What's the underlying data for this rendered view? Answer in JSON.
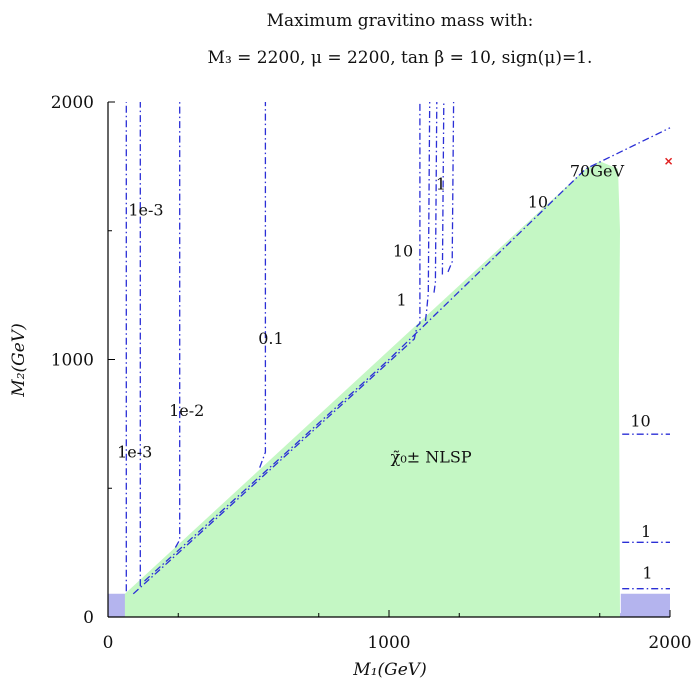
{
  "chart_data": {
    "type": "area",
    "title": "Maximum gravitino mass with:",
    "subtitle": "M₃ = 2200, μ = 2200, tan β = 10, sign(μ)=1.",
    "xlabel": "M₁(GeV)",
    "ylabel": "M₂(GeV)",
    "xlim": [
      0,
      2000
    ],
    "ylim": [
      0,
      2000
    ],
    "x_ticks": [
      0,
      1000,
      2000
    ],
    "y_ticks": [
      0,
      1000,
      2000
    ],
    "grid": false,
    "colors": {
      "nlsp_region": "#c4f7c4",
      "excluded_region": "#b4b4ee",
      "contour": "#2b2fd6",
      "marker": "#e02020"
    },
    "regions": [
      {
        "label": "χ̃₀± NLSP",
        "label_pos": [
          1150,
          600
        ],
        "boundary": [
          [
            60,
            90
          ],
          [
            1700,
            1740
          ],
          [
            1750,
            1770
          ],
          [
            1815,
            1740
          ],
          [
            1822,
            1500
          ],
          [
            1818,
            1000
          ],
          [
            1822,
            0
          ],
          [
            60,
            0
          ]
        ]
      }
    ],
    "excluded_regions": [
      {
        "boundary": [
          [
            0,
            0
          ],
          [
            2000,
            0
          ],
          [
            2000,
            90
          ],
          [
            1825,
            90
          ],
          [
            1825,
            15
          ],
          [
            150,
            15
          ],
          [
            60,
            90
          ],
          [
            0,
            90
          ]
        ]
      }
    ],
    "contours": [
      {
        "label": "1e-3",
        "label_pos": [
          95,
          620
        ],
        "points": [
          [
            65,
            100
          ],
          [
            65,
            2000
          ]
        ]
      },
      {
        "label": "1e-3",
        "label_pos": [
          135,
          1560
        ],
        "points": [
          [
            115,
            120
          ],
          [
            115,
            2000
          ]
        ]
      },
      {
        "label": "1e-2",
        "label_pos": [
          280,
          780
        ],
        "points": [
          [
            240,
            270
          ],
          [
            255,
            300
          ],
          [
            255,
            2000
          ]
        ]
      },
      {
        "label": "0.1",
        "label_pos": [
          580,
          1060
        ],
        "points": [
          [
            540,
            580
          ],
          [
            560,
            640
          ],
          [
            560,
            2000
          ]
        ]
      },
      {
        "label": "10",
        "label_pos": [
          1050,
          1400
        ],
        "points": [
          [
            90,
            90
          ],
          [
            1090,
            1080
          ],
          [
            1100,
            1130
          ],
          [
            1110,
            1140
          ],
          [
            1110,
            2000
          ]
        ]
      },
      {
        "label": "1",
        "label_pos": [
          1045,
          1210
        ],
        "points": [
          [
            1130,
            1150
          ],
          [
            1135,
            1200
          ],
          [
            1140,
            1260
          ],
          [
            1145,
            2000
          ]
        ]
      },
      {
        "label": "1",
        "label_pos": [
          1185,
          1660
        ],
        "points": [
          [
            1160,
            1260
          ],
          [
            1165,
            1300
          ],
          [
            1170,
            2000
          ]
        ]
      },
      {
        "label": "",
        "label_pos": null,
        "points": [
          [
            1190,
            1330
          ],
          [
            1195,
            2000
          ]
        ]
      },
      {
        "label": "",
        "label_pos": null,
        "points": [
          [
            1210,
            1340
          ],
          [
            1225,
            1380
          ],
          [
            1230,
            2000
          ]
        ]
      },
      {
        "label": "10",
        "label_pos": [
          1530,
          1590
        ],
        "points": [
          [
            130,
            140
          ],
          [
            1000,
            1000
          ],
          [
            1700,
            1740
          ],
          [
            2000,
            1900
          ]
        ]
      },
      {
        "label": "10",
        "label_pos": [
          1895,
          740
        ],
        "points": [
          [
            1830,
            710
          ],
          [
            2000,
            710
          ]
        ]
      },
      {
        "label": "1",
        "label_pos": [
          1915,
          310
        ],
        "points": [
          [
            1830,
            290
          ],
          [
            2000,
            290
          ]
        ]
      },
      {
        "label": "1",
        "label_pos": [
          1920,
          150
        ],
        "points": [
          [
            1830,
            110
          ],
          [
            2000,
            110
          ]
        ]
      }
    ],
    "annotations": [
      {
        "text": "70GeV",
        "pos": [
          1740,
          1710
        ]
      }
    ],
    "markers": [
      {
        "type": "x",
        "pos": [
          1995,
          1770
        ]
      }
    ]
  }
}
